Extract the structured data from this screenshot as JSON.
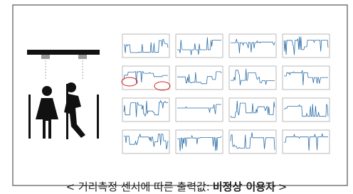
{
  "caption": {
    "prefix": "< 거리측정 센서에 따른 출력값:",
    "emphasis": "비정상 이용자",
    "suffix": ">"
  }
}
